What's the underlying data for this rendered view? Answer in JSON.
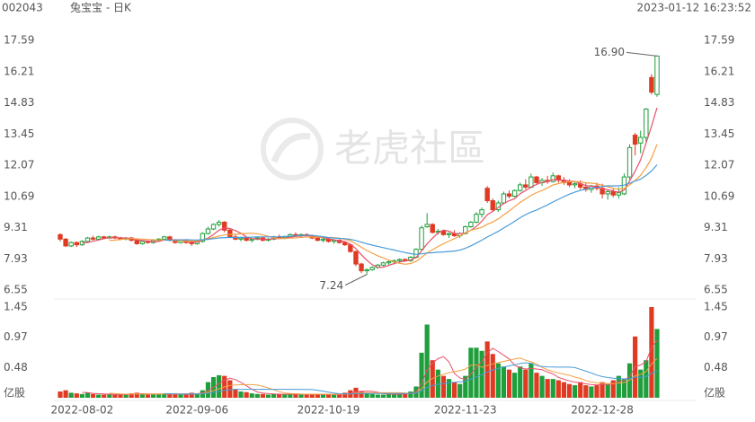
{
  "chart_data": {
    "type": "candlestick",
    "code": "002043",
    "title": "兔宝宝 - 日K",
    "timestamp": "2023-01-12 16:23:52",
    "watermark": "老虎社區",
    "up_color": "#1f9e3c",
    "down_color": "#e03a22",
    "ylim": [
      6.55,
      17.59
    ],
    "yticks": [
      17.59,
      16.21,
      14.83,
      13.45,
      12.07,
      10.69,
      9.31,
      7.93,
      6.55
    ],
    "volume_ylim": [
      0,
      1.45
    ],
    "volume_yticks": [
      {
        "value": 0,
        "label": "亿股"
      },
      0.48,
      0.97,
      1.45
    ],
    "max_label": {
      "value": 16.9,
      "label": "16.90"
    },
    "min_label": {
      "value": 7.24,
      "label": "7.24"
    },
    "ma": [
      {
        "period": 5,
        "color": "#e8506a"
      },
      {
        "period": 10,
        "color": "#f5a043"
      },
      {
        "period": 20,
        "color": "#4a9bd8"
      }
    ],
    "categories": [
      null,
      null,
      null,
      null,
      "2022-08-02",
      null,
      null,
      null,
      null,
      null,
      null,
      null,
      null,
      null,
      null,
      null,
      null,
      null,
      null,
      null,
      null,
      null,
      null,
      null,
      null,
      "2022-09-06",
      null,
      null,
      null,
      null,
      null,
      null,
      null,
      null,
      null,
      null,
      null,
      null,
      null,
      null,
      null,
      null,
      null,
      null,
      null,
      null,
      null,
      null,
      null,
      "2022-10-19",
      null,
      null,
      null,
      null,
      null,
      null,
      null,
      null,
      null,
      null,
      null,
      null,
      null,
      null,
      null,
      null,
      null,
      null,
      null,
      null,
      null,
      null,
      null,
      null,
      "2022-11-23",
      null,
      null,
      null,
      null,
      null,
      null,
      null,
      null,
      null,
      null,
      null,
      null,
      null,
      null,
      null,
      null,
      null,
      null,
      null,
      null,
      null,
      null,
      null,
      null,
      "2022-12-28",
      null,
      null,
      null,
      null,
      null,
      null,
      null,
      null,
      null,
      null
    ],
    "candles": [
      [
        9.0,
        9.05,
        8.7,
        8.8
      ],
      [
        8.8,
        8.85,
        8.45,
        8.5
      ],
      [
        8.5,
        8.7,
        8.45,
        8.65
      ],
      [
        8.65,
        8.7,
        8.45,
        8.55
      ],
      [
        8.55,
        8.75,
        8.5,
        8.7
      ],
      [
        8.7,
        8.9,
        8.65,
        8.85
      ],
      [
        8.85,
        8.95,
        8.75,
        8.8
      ],
      [
        8.8,
        8.95,
        8.75,
        8.9
      ],
      [
        8.9,
        8.95,
        8.8,
        8.85
      ],
      [
        8.85,
        8.95,
        8.8,
        8.9
      ],
      [
        8.9,
        8.95,
        8.8,
        8.85
      ],
      [
        8.85,
        8.9,
        8.75,
        8.8
      ],
      [
        8.8,
        8.9,
        8.75,
        8.85
      ],
      [
        8.85,
        8.9,
        8.7,
        8.75
      ],
      [
        8.75,
        8.8,
        8.55,
        8.6
      ],
      [
        8.6,
        8.75,
        8.55,
        8.7
      ],
      [
        8.7,
        8.75,
        8.6,
        8.65
      ],
      [
        8.65,
        8.8,
        8.6,
        8.75
      ],
      [
        8.75,
        8.85,
        8.7,
        8.8
      ],
      [
        8.8,
        8.95,
        8.75,
        8.9
      ],
      [
        8.9,
        8.95,
        8.7,
        8.75
      ],
      [
        8.75,
        8.8,
        8.6,
        8.65
      ],
      [
        8.65,
        8.8,
        8.6,
        8.75
      ],
      [
        8.75,
        8.8,
        8.6,
        8.65
      ],
      [
        8.65,
        8.7,
        8.5,
        8.6
      ],
      [
        8.6,
        8.75,
        8.55,
        8.7
      ],
      [
        8.7,
        9.1,
        8.65,
        9.05
      ],
      [
        9.05,
        9.35,
        9.0,
        9.25
      ],
      [
        9.25,
        9.5,
        9.2,
        9.45
      ],
      [
        9.45,
        9.65,
        9.35,
        9.55
      ],
      [
        9.55,
        9.6,
        9.1,
        9.2
      ],
      [
        9.2,
        9.25,
        8.85,
        8.9
      ],
      [
        8.9,
        9.0,
        8.75,
        8.8
      ],
      [
        8.8,
        8.9,
        8.7,
        8.85
      ],
      [
        8.85,
        8.9,
        8.7,
        8.75
      ],
      [
        8.75,
        8.85,
        8.65,
        8.8
      ],
      [
        8.8,
        8.9,
        8.75,
        8.85
      ],
      [
        8.85,
        8.9,
        8.7,
        8.75
      ],
      [
        8.75,
        8.85,
        8.7,
        8.8
      ],
      [
        8.8,
        8.95,
        8.75,
        8.9
      ],
      [
        8.9,
        9.0,
        8.8,
        8.85
      ],
      [
        8.85,
        8.95,
        8.8,
        8.9
      ],
      [
        8.9,
        9.05,
        8.85,
        9.0
      ],
      [
        9.0,
        9.1,
        8.9,
        8.95
      ],
      [
        8.95,
        9.05,
        8.85,
        9.0
      ],
      [
        9.0,
        9.05,
        8.9,
        8.95
      ],
      [
        8.95,
        9.0,
        8.8,
        8.85
      ],
      [
        8.85,
        8.9,
        8.7,
        8.75
      ],
      [
        8.75,
        8.85,
        8.65,
        8.8
      ],
      [
        8.8,
        8.85,
        8.65,
        8.7
      ],
      [
        8.7,
        8.8,
        8.6,
        8.75
      ],
      [
        8.75,
        8.8,
        8.6,
        8.65
      ],
      [
        8.65,
        8.7,
        8.5,
        8.55
      ],
      [
        8.55,
        8.6,
        8.2,
        8.25
      ],
      [
        8.25,
        8.3,
        7.6,
        7.7
      ],
      [
        7.7,
        7.75,
        7.3,
        7.4
      ],
      [
        7.4,
        7.5,
        7.24,
        7.45
      ],
      [
        7.45,
        7.6,
        7.4,
        7.55
      ],
      [
        7.55,
        7.7,
        7.5,
        7.65
      ],
      [
        7.65,
        7.8,
        7.6,
        7.75
      ],
      [
        7.75,
        7.85,
        7.65,
        7.8
      ],
      [
        7.8,
        7.9,
        7.7,
        7.85
      ],
      [
        7.85,
        7.95,
        7.75,
        7.9
      ],
      [
        7.9,
        7.95,
        7.8,
        7.85
      ],
      [
        7.85,
        8.05,
        7.8,
        8.0
      ],
      [
        8.0,
        8.4,
        7.95,
        8.35
      ],
      [
        8.35,
        9.4,
        8.3,
        9.3
      ],
      [
        9.35,
        9.95,
        9.3,
        9.45
      ],
      [
        9.45,
        9.5,
        9.05,
        9.1
      ],
      [
        9.1,
        9.25,
        9.0,
        9.15
      ],
      [
        9.15,
        9.2,
        8.95,
        9.0
      ],
      [
        9.0,
        9.1,
        8.85,
        9.05
      ],
      [
        9.05,
        9.2,
        8.9,
        8.95
      ],
      [
        8.95,
        9.1,
        8.85,
        9.05
      ],
      [
        9.05,
        9.4,
        9.0,
        9.35
      ],
      [
        9.35,
        9.6,
        9.3,
        9.55
      ],
      [
        9.55,
        10.0,
        9.5,
        9.9
      ],
      [
        9.9,
        10.2,
        9.75,
        10.1
      ],
      [
        11.05,
        11.15,
        10.4,
        10.5
      ],
      [
        10.5,
        10.6,
        10.0,
        10.1
      ],
      [
        10.1,
        10.5,
        10.0,
        10.4
      ],
      [
        10.4,
        10.9,
        10.35,
        10.8
      ],
      [
        10.8,
        10.95,
        10.6,
        10.7
      ],
      [
        10.7,
        11.0,
        10.65,
        10.95
      ],
      [
        10.95,
        11.3,
        10.9,
        11.2
      ],
      [
        11.2,
        11.45,
        11.0,
        11.1
      ],
      [
        11.1,
        11.7,
        11.05,
        11.55
      ],
      [
        11.55,
        11.6,
        11.2,
        11.3
      ],
      [
        11.3,
        11.5,
        11.15,
        11.4
      ],
      [
        11.4,
        11.6,
        11.25,
        11.35
      ],
      [
        11.35,
        11.75,
        11.3,
        11.6
      ],
      [
        11.6,
        11.65,
        11.3,
        11.4
      ],
      [
        11.4,
        11.55,
        11.2,
        11.3
      ],
      [
        11.3,
        11.45,
        11.1,
        11.2
      ],
      [
        11.2,
        11.35,
        11.05,
        11.25
      ],
      [
        11.25,
        11.4,
        11.0,
        11.1
      ],
      [
        11.1,
        11.3,
        10.9,
        11.0
      ],
      [
        11.0,
        11.2,
        10.85,
        11.15
      ],
      [
        11.15,
        11.3,
        10.95,
        11.05
      ],
      [
        11.05,
        11.25,
        10.6,
        10.8
      ],
      [
        10.8,
        11.0,
        10.55,
        10.9
      ],
      [
        10.9,
        11.05,
        10.65,
        10.75
      ],
      [
        10.75,
        11.1,
        10.6,
        10.85
      ],
      [
        10.8,
        11.7,
        10.75,
        11.55
      ],
      [
        11.55,
        13.0,
        11.45,
        12.85
      ],
      [
        13.4,
        13.5,
        12.5,
        13.0
      ],
      [
        13.05,
        13.6,
        12.6,
        13.3
      ],
      [
        13.3,
        14.6,
        13.1,
        14.55
      ],
      [
        15.95,
        16.1,
        15.2,
        15.3
      ],
      [
        15.2,
        16.9,
        15.1,
        16.9
      ]
    ],
    "volume": [
      0.1,
      0.12,
      0.08,
      0.07,
      0.06,
      0.08,
      0.06,
      0.05,
      0.05,
      0.05,
      0.05,
      0.06,
      0.05,
      0.07,
      0.08,
      0.06,
      0.05,
      0.05,
      0.06,
      0.07,
      0.06,
      0.06,
      0.05,
      0.06,
      0.08,
      0.07,
      0.12,
      0.25,
      0.33,
      0.36,
      0.35,
      0.28,
      0.14,
      0.1,
      0.09,
      0.07,
      0.06,
      0.06,
      0.05,
      0.06,
      0.06,
      0.05,
      0.07,
      0.06,
      0.05,
      0.05,
      0.06,
      0.06,
      0.05,
      0.05,
      0.05,
      0.06,
      0.08,
      0.12,
      0.16,
      0.1,
      0.07,
      0.06,
      0.05,
      0.05,
      0.06,
      0.06,
      0.07,
      0.06,
      0.1,
      0.18,
      0.72,
      1.17,
      0.6,
      0.45,
      0.35,
      0.3,
      0.25,
      0.22,
      0.35,
      0.8,
      0.8,
      0.75,
      0.9,
      0.7,
      0.55,
      0.5,
      0.45,
      0.4,
      0.5,
      0.45,
      0.55,
      0.4,
      0.35,
      0.3,
      0.3,
      0.28,
      0.25,
      0.22,
      0.2,
      0.25,
      0.2,
      0.18,
      0.2,
      0.25,
      0.22,
      0.28,
      0.35,
      0.3,
      0.55,
      0.98,
      0.45,
      0.6,
      1.45,
      1.1
    ]
  }
}
